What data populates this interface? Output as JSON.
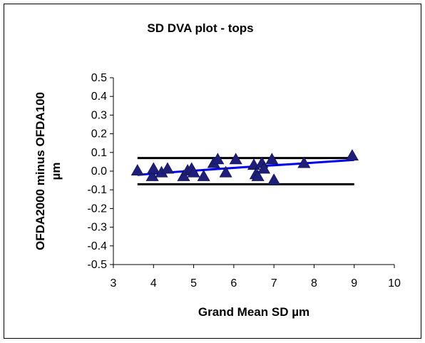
{
  "chart_data": {
    "type": "scatter",
    "title": "SD DVA plot - tops",
    "xlabel": "Grand Mean SD µm",
    "ylabel": [
      "OFDA2000 minus OFDA100",
      "µm"
    ],
    "xlim": [
      3,
      10
    ],
    "ylim": [
      -0.5,
      0.5
    ],
    "xticks": [
      3,
      4,
      5,
      6,
      7,
      8,
      9,
      10
    ],
    "yticks": [
      "0.5",
      "0.4",
      "0.3",
      "0.2",
      "0.1",
      "0.0",
      "-0.1",
      "-0.2",
      "-0.3",
      "-0.4",
      "-0.5"
    ],
    "grid": false,
    "legend": "none",
    "marker_color": "#1f1f7a",
    "trend_color": "#0000ee",
    "points": [
      [
        3.6,
        0.0
      ],
      [
        3.97,
        -0.03
      ],
      [
        4.0,
        0.01
      ],
      [
        4.2,
        -0.01
      ],
      [
        4.35,
        0.01
      ],
      [
        4.75,
        -0.03
      ],
      [
        4.85,
        0.0
      ],
      [
        4.95,
        0.01
      ],
      [
        5.0,
        -0.01
      ],
      [
        5.25,
        -0.03
      ],
      [
        5.5,
        0.04
      ],
      [
        5.6,
        0.06
      ],
      [
        5.8,
        -0.01
      ],
      [
        6.05,
        0.06
      ],
      [
        6.5,
        0.03
      ],
      [
        6.55,
        -0.02
      ],
      [
        6.6,
        -0.03
      ],
      [
        6.7,
        0.04
      ],
      [
        6.75,
        0.01
      ],
      [
        6.95,
        0.06
      ],
      [
        7.0,
        -0.05
      ],
      [
        7.75,
        0.04
      ],
      [
        8.95,
        0.08
      ]
    ],
    "trend": {
      "type": "power",
      "x": [
        3.6,
        4.5,
        5.5,
        6.5,
        7.5,
        9.0
      ],
      "y": [
        -0.02,
        -0.005,
        0.01,
        0.025,
        0.038,
        0.06
      ]
    },
    "limit_lines": [
      {
        "y": 0.07,
        "x": [
          3.6,
          9.0
        ]
      },
      {
        "y": -0.07,
        "x": [
          3.6,
          9.0
        ]
      }
    ]
  }
}
